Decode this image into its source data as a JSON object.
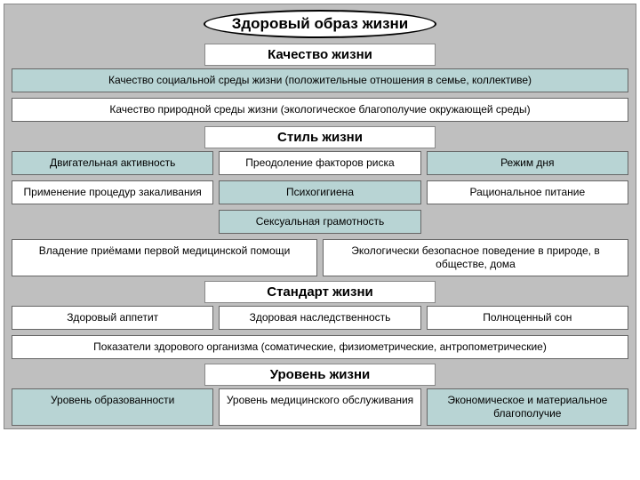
{
  "title": "Здоровый образ жизни",
  "colors": {
    "page_bg": "#bfbfbf",
    "cell_blue": "#b8d4d4",
    "cell_white": "#ffffff",
    "border": "#666666",
    "title_border": "#000000"
  },
  "fonts": {
    "title_size": 17,
    "header_size": 15,
    "cell_size": 12,
    "family": "Arial"
  },
  "sections": [
    {
      "header": "Качество жизни",
      "rows": [
        {
          "cells": [
            {
              "text": "Качество социальной среды жизни (положительные отношения в семье, коллективе)",
              "bg": "blue"
            }
          ]
        },
        {
          "cells": [
            {
              "text": "Качество природной среды жизни (экологическое благополучие окружающей среды)",
              "bg": "white"
            }
          ]
        }
      ]
    },
    {
      "header": "Стиль жизни",
      "rows": [
        {
          "cells": [
            {
              "text": "Двигательная активность",
              "bg": "blue"
            },
            {
              "text": "Преодоление факторов риска",
              "bg": "white"
            },
            {
              "text": "Режим дня",
              "bg": "blue"
            }
          ]
        },
        {
          "cells": [
            {
              "text": "Применение процедур закаливания",
              "bg": "white"
            },
            {
              "text": "Психогигиена",
              "bg": "blue"
            },
            {
              "text": "Рациональное питание",
              "bg": "white"
            }
          ]
        },
        {
          "cells": [
            {
              "text": "",
              "bg": "none"
            },
            {
              "text": "Сексуальная грамотность",
              "bg": "blue"
            },
            {
              "text": "",
              "bg": "none"
            }
          ]
        },
        {
          "cells": [
            {
              "text": "Владение приёмами первой медицинской помощи",
              "bg": "white"
            },
            {
              "text": "Экологически безопасное поведение в природе, в обществе, дома",
              "bg": "white"
            }
          ]
        }
      ]
    },
    {
      "header": "Стандарт жизни",
      "rows": [
        {
          "cells": [
            {
              "text": "Здоровый аппетит",
              "bg": "white"
            },
            {
              "text": "Здоровая наследственность",
              "bg": "white"
            },
            {
              "text": "Полноценный сон",
              "bg": "white"
            }
          ]
        },
        {
          "cells": [
            {
              "text": "Показатели здорового организма (соматические, физиометрические, антропометрические)",
              "bg": "white"
            }
          ]
        }
      ]
    },
    {
      "header": "Уровень жизни",
      "rows": [
        {
          "cells": [
            {
              "text": "Уровень образованности",
              "bg": "blue"
            },
            {
              "text": "Уровень медицинского обслуживания",
              "bg": "white"
            },
            {
              "text": "Экономическое и материальное благополучие",
              "bg": "blue"
            }
          ]
        }
      ]
    }
  ]
}
